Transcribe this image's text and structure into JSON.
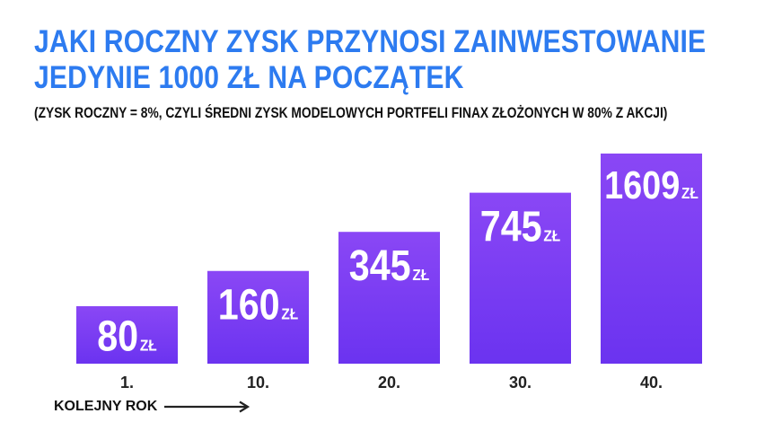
{
  "header": {
    "title_line_1": "JAKI ROCZNY ZYSK PRZYNOSI ZAINWESTOWANIE",
    "title_line_2": "JEDYNIE 1000 ZŁ NA POCZĄTEK",
    "subtitle": "(ZYSK ROCZNY = 8%, CZYLI ŚREDNI ZYSK MODELOWYCH PORTFELI FINAX ZŁOŻONYCH W 80% Z AKCJI)"
  },
  "axis_note": {
    "label": "KOLEJNY ROK",
    "icon": "arrow-right-icon"
  },
  "colors": {
    "title": "#2d7bf0",
    "bar_top": "#8a47f5",
    "bar_bottom": "#6b33f0",
    "bar_text": "#ffffff",
    "text": "#111111"
  },
  "chart_data": {
    "type": "bar",
    "categories": [
      "1.",
      "10.",
      "20.",
      "30.",
      "40."
    ],
    "values": [
      80,
      160,
      345,
      745,
      1609
    ],
    "value_labels": [
      "80",
      "160",
      "345",
      "745",
      "1609"
    ],
    "unit": "ZŁ",
    "title": "JAKI ROCZNY ZYSK PRZYNOSI ZAINWESTOWANIE JEDYNIE 1000 ZŁ NA POCZĄTEK",
    "subtitle": "(ZYSK ROCZNY = 8%, CZYLI ŚREDNI ZYSK MODELOWYCH PORTFELI FINAX ZŁOŻONYCH W 80% Z AKCJI)",
    "xlabel": "KOLEJNY ROK",
    "ylabel": "",
    "grid": false,
    "legend": "none"
  }
}
